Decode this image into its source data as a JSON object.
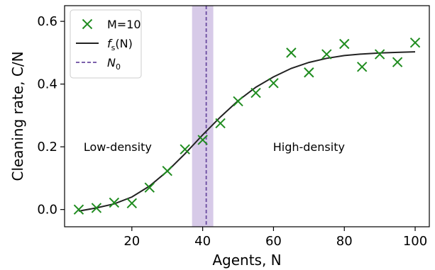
{
  "chart_data": {
    "type": "scatter",
    "xlabel": "Agents, N",
    "ylabel": "Cleaning rate, C/N",
    "xlim": [
      1,
      104
    ],
    "ylim": [
      -0.055,
      0.65
    ],
    "xticks": [
      20,
      40,
      60,
      80,
      100
    ],
    "yticks": [
      0.0,
      0.2,
      0.4,
      0.6
    ],
    "xtick_labels": [
      "20",
      "40",
      "60",
      "80",
      "100"
    ],
    "ytick_labels": [
      "0.0",
      "0.2",
      "0.4",
      "0.6"
    ],
    "grid": false,
    "legend_position": "top-left",
    "series": [
      {
        "name": "M=10",
        "kind": "scatter",
        "marker": "x",
        "color": "#1f8c1f",
        "x": [
          5,
          10,
          15,
          20,
          25,
          30,
          35,
          40,
          45,
          50,
          55,
          60,
          65,
          70,
          75,
          80,
          85,
          90,
          95,
          100
        ],
        "y": [
          0.0,
          0.005,
          0.022,
          0.02,
          0.07,
          0.123,
          0.192,
          0.222,
          0.275,
          0.345,
          0.372,
          0.403,
          0.5,
          0.437,
          0.495,
          0.528,
          0.455,
          0.495,
          0.47,
          0.532
        ]
      },
      {
        "name": "f_s(N)",
        "kind": "line",
        "color": "#222222",
        "x": [
          5,
          10,
          15,
          20,
          25,
          30,
          35,
          40,
          45,
          50,
          55,
          60,
          65,
          70,
          75,
          80,
          85,
          90,
          95,
          100
        ],
        "y": [
          -0.005,
          0.005,
          0.018,
          0.04,
          0.075,
          0.122,
          0.178,
          0.238,
          0.295,
          0.347,
          0.39,
          0.423,
          0.45,
          0.469,
          0.482,
          0.491,
          0.496,
          0.499,
          0.501,
          0.503
        ]
      },
      {
        "name": "N_0",
        "kind": "vline",
        "color": "#6a4ba0",
        "x": 41,
        "band": [
          37,
          43
        ],
        "band_color": "#c9b8e0"
      }
    ],
    "annotations": [
      {
        "text": "Low-density",
        "x": 16,
        "y": 0.2
      },
      {
        "text": "High-density",
        "x": 70,
        "y": 0.2
      }
    ],
    "legend": [
      {
        "label_main": "M=10",
        "label_sub": "",
        "label_tail": ""
      },
      {
        "label_main": "f",
        "label_sub": "s",
        "label_tail": "(N)"
      },
      {
        "label_main": "N",
        "label_sub": "0",
        "label_tail": ""
      }
    ]
  }
}
